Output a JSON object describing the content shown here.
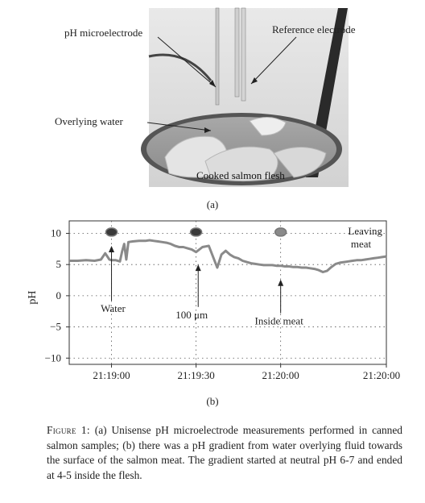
{
  "figure": {
    "panel_a": {
      "labels": {
        "ph_microelectrode": "pH microelectrode",
        "reference_electrode": "Reference electrode",
        "overlying_water": "Overlying water",
        "cooked_salmon": "Cooked salmon flesh"
      },
      "sub_label": "(a)"
    },
    "panel_b": {
      "sub_label": "(b)"
    },
    "caption": {
      "label": "Figure 1:",
      "text": "(a) Unisense pH microelectrode measurements performed in canned salmon samples; (b) there was a pH gradient from water overlying fluid towards the surface of the salmon meat. The gradient started at neutral pH 6-7 and ended at 4-5 inside the flesh."
    }
  },
  "chart_data": {
    "type": "line",
    "title": "",
    "xlabel": "",
    "ylabel": "pH",
    "x_ticks": [
      "21:19:00",
      "21:19:30",
      "21:20:00",
      "21:20:00"
    ],
    "y_ticks": [
      10,
      5,
      0,
      -5,
      -10
    ],
    "ylim": [
      -11,
      12
    ],
    "grid": "dotted",
    "x_seconds": [
      0,
      4,
      8,
      12,
      15,
      17,
      18,
      19,
      20,
      22,
      24,
      25,
      26,
      27,
      28,
      30,
      33,
      36,
      38,
      40,
      42,
      44,
      46,
      48,
      50,
      52,
      54,
      56,
      58,
      60,
      63,
      66,
      70,
      72,
      74,
      76,
      78,
      80,
      82,
      84,
      86,
      88,
      90,
      92,
      94,
      96,
      98,
      100,
      102,
      104,
      106,
      108,
      110,
      112,
      114,
      116,
      118,
      120,
      122,
      124,
      126,
      128,
      130,
      132,
      134,
      136,
      138,
      140,
      142,
      144,
      146,
      148,
      150
    ],
    "ph": [
      5.6,
      5.6,
      5.7,
      5.6,
      5.8,
      6.8,
      6.3,
      5.8,
      5.7,
      5.7,
      5.5,
      7.1,
      8.3,
      5.8,
      8.6,
      8.7,
      8.8,
      8.8,
      8.9,
      8.8,
      8.7,
      8.6,
      8.5,
      8.3,
      8.0,
      7.8,
      7.8,
      7.6,
      7.4,
      7.0,
      7.8,
      8.0,
      4.5,
      6.6,
      7.2,
      6.6,
      6.2,
      6.0,
      5.6,
      5.4,
      5.2,
      5.1,
      5.0,
      4.9,
      4.9,
      4.9,
      4.8,
      4.8,
      4.7,
      4.7,
      4.6,
      4.6,
      4.5,
      4.5,
      4.4,
      4.3,
      4.1,
      3.8,
      4.0,
      4.6,
      5.1,
      5.3,
      5.4,
      5.5,
      5.6,
      5.7,
      5.7,
      5.8,
      5.9,
      6.0,
      6.1,
      6.2,
      6.3
    ],
    "markers": [
      {
        "x_seconds": 20,
        "y": 10.2
      },
      {
        "x_seconds": 60,
        "y": 10.2
      },
      {
        "x_seconds": 100,
        "y": 10.2
      }
    ],
    "annotations": [
      {
        "text": "Water",
        "arrow_to_x_seconds": 20,
        "arrow_to_y": 8.0
      },
      {
        "text": "100 μm",
        "arrow_to_x_seconds": 61,
        "arrow_to_y": 5.0
      },
      {
        "text": "Inside meat",
        "arrow_to_x_seconds": 100,
        "arrow_to_y": 2.6
      },
      {
        "text": "Leaving meat"
      }
    ]
  }
}
